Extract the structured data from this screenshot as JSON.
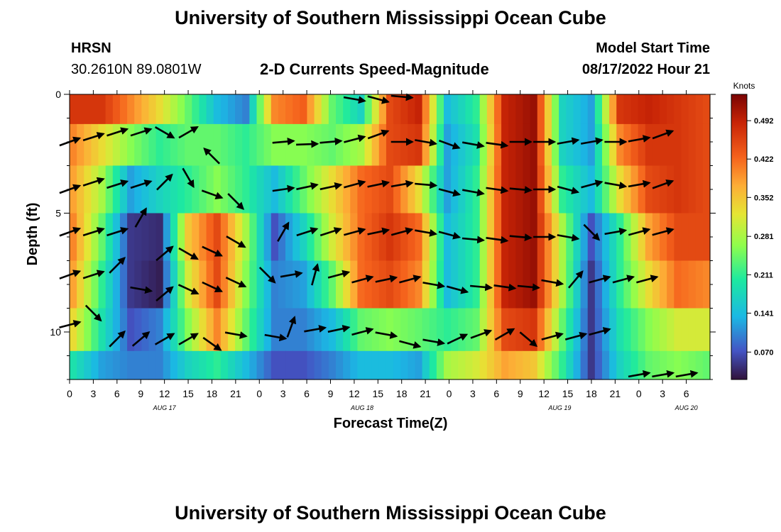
{
  "title": "University of Southern Mississippi Ocean Cube",
  "title_repeat": "University of Southern Mississippi Ocean Cube",
  "station": {
    "name": "HRSN",
    "coords": "30.2610N  89.0801W"
  },
  "model": {
    "label": "Model Start Time",
    "value": "08/17/2022 Hour 21"
  },
  "colors": {
    "background": "#ffffff",
    "arrow": "#000000"
  },
  "chart_data": {
    "type": "heatmap",
    "title": "2-D Currents Speed-Magnitude",
    "xlabel": "Forecast Time(Z)",
    "ylabel": "Depth (ft)",
    "y_range": [
      0,
      12
    ],
    "y_ticks": [
      0,
      5,
      10
    ],
    "x_hours_range": [
      0,
      81
    ],
    "x_tick_labels": [
      "0",
      "3",
      "6",
      "9",
      "12",
      "15",
      "18",
      "21",
      "0",
      "3",
      "6",
      "9",
      "12",
      "15",
      "18",
      "21",
      "0",
      "3",
      "6",
      "9",
      "12",
      "15",
      "18",
      "21",
      "0",
      "3",
      "6"
    ],
    "date_labels": [
      {
        "label": "AUG 17",
        "hour": 12
      },
      {
        "label": "AUG 18",
        "hour": 37
      },
      {
        "label": "AUG 19",
        "hour": 62
      },
      {
        "label": "AUG 20",
        "hour": 78
      }
    ],
    "colorbar": {
      "unit": "Knots",
      "range": [
        0.02,
        0.54
      ],
      "ticks": [
        "0.492",
        "0.422",
        "0.352",
        "0.281",
        "0.211",
        "0.141",
        "0.070"
      ]
    },
    "depth_rows": [
      0.5,
      2,
      4,
      6,
      8,
      10,
      11.6
    ],
    "speed_grid": [
      [
        0.47,
        0.47,
        0.4,
        0.33,
        0.24,
        0.14,
        0.1,
        0.4,
        0.43,
        0.24,
        0.17,
        0.45,
        0.49,
        0.14,
        0.21,
        0.49,
        0.52,
        0.17,
        0.12,
        0.47,
        0.49,
        0.47,
        0.45
      ],
      [
        0.4,
        0.33,
        0.26,
        0.21,
        0.24,
        0.24,
        0.21,
        0.26,
        0.26,
        0.24,
        0.28,
        0.45,
        0.47,
        0.12,
        0.19,
        0.49,
        0.52,
        0.17,
        0.12,
        0.4,
        0.47,
        0.47,
        0.45
      ],
      [
        0.38,
        0.28,
        0.12,
        0.17,
        0.21,
        0.26,
        0.21,
        0.14,
        0.24,
        0.33,
        0.42,
        0.45,
        0.33,
        0.12,
        0.21,
        0.49,
        0.52,
        0.21,
        0.14,
        0.33,
        0.45,
        0.47,
        0.45
      ],
      [
        0.4,
        0.24,
        0.05,
        0.04,
        0.35,
        0.45,
        0.28,
        0.07,
        0.17,
        0.31,
        0.42,
        0.47,
        0.42,
        0.14,
        0.21,
        0.49,
        0.52,
        0.28,
        0.07,
        0.21,
        0.38,
        0.45,
        0.45
      ],
      [
        0.38,
        0.21,
        0.05,
        0.03,
        0.31,
        0.45,
        0.26,
        0.1,
        0.12,
        0.24,
        0.42,
        0.45,
        0.4,
        0.14,
        0.21,
        0.49,
        0.52,
        0.28,
        0.05,
        0.21,
        0.33,
        0.42,
        0.4
      ],
      [
        0.33,
        0.19,
        0.07,
        0.1,
        0.26,
        0.4,
        0.24,
        0.1,
        0.1,
        0.14,
        0.24,
        0.26,
        0.24,
        0.21,
        0.24,
        0.45,
        0.47,
        0.24,
        0.05,
        0.19,
        0.26,
        0.31,
        0.31
      ],
      [
        0.19,
        0.12,
        0.1,
        0.1,
        0.17,
        0.21,
        0.14,
        0.07,
        0.07,
        0.1,
        0.14,
        0.14,
        0.12,
        0.28,
        0.31,
        0.38,
        0.35,
        0.21,
        0.05,
        0.17,
        0.24,
        0.26,
        0.24
      ]
    ],
    "vectors": [
      [
        0,
        2,
        20
      ],
      [
        3,
        1.8,
        18
      ],
      [
        6,
        1.6,
        18
      ],
      [
        9,
        1.6,
        18
      ],
      [
        12,
        1.6,
        -30
      ],
      [
        15,
        1.6,
        30
      ],
      [
        18,
        2.6,
        135
      ],
      [
        27,
        2.0,
        5
      ],
      [
        30,
        2.1,
        2
      ],
      [
        33,
        2.0,
        5
      ],
      [
        36,
        1.9,
        15
      ],
      [
        39,
        1.7,
        20
      ],
      [
        42,
        2.0,
        0
      ],
      [
        45,
        2.0,
        -10
      ],
      [
        48,
        2.1,
        -20
      ],
      [
        51,
        2.1,
        -10
      ],
      [
        54,
        2.1,
        -8
      ],
      [
        57,
        2.0,
        0
      ],
      [
        60,
        2.0,
        0
      ],
      [
        63,
        2.0,
        10
      ],
      [
        66,
        2.0,
        10
      ],
      [
        69,
        2.0,
        0
      ],
      [
        72,
        1.9,
        10
      ],
      [
        75,
        1.7,
        20
      ],
      [
        0,
        4,
        20
      ],
      [
        3,
        3.7,
        18
      ],
      [
        6,
        3.8,
        18
      ],
      [
        9,
        3.8,
        18
      ],
      [
        12,
        3.7,
        45
      ],
      [
        15,
        3.5,
        -60
      ],
      [
        18,
        4.2,
        -20
      ],
      [
        21,
        4.5,
        -45
      ],
      [
        27,
        4.0,
        8
      ],
      [
        30,
        3.9,
        12
      ],
      [
        33,
        3.9,
        12
      ],
      [
        36,
        3.8,
        15
      ],
      [
        39,
        3.8,
        12
      ],
      [
        42,
        3.8,
        10
      ],
      [
        45,
        3.8,
        -5
      ],
      [
        48,
        4.1,
        -15
      ],
      [
        51,
        4.1,
        -10
      ],
      [
        54,
        4.0,
        -8
      ],
      [
        57,
        4.0,
        -5
      ],
      [
        60,
        4.0,
        0
      ],
      [
        63,
        4.0,
        -15
      ],
      [
        66,
        3.8,
        15
      ],
      [
        69,
        3.8,
        -10
      ],
      [
        72,
        3.8,
        10
      ],
      [
        75,
        3.8,
        20
      ],
      [
        0,
        5.8,
        20
      ],
      [
        3,
        5.8,
        18
      ],
      [
        6,
        5.8,
        18
      ],
      [
        9,
        5.2,
        60
      ],
      [
        12,
        6.7,
        40
      ],
      [
        15,
        6.7,
        -30
      ],
      [
        18,
        6.6,
        -25
      ],
      [
        21,
        6.2,
        -30
      ],
      [
        27,
        5.8,
        60
      ],
      [
        30,
        5.8,
        18
      ],
      [
        33,
        5.8,
        18
      ],
      [
        36,
        5.8,
        15
      ],
      [
        39,
        5.8,
        12
      ],
      [
        42,
        5.8,
        15
      ],
      [
        45,
        5.8,
        -10
      ],
      [
        48,
        5.9,
        -15
      ],
      [
        51,
        6.1,
        -5
      ],
      [
        54,
        6.1,
        -8
      ],
      [
        57,
        6.0,
        -5
      ],
      [
        60,
        6.0,
        0
      ],
      [
        63,
        6.0,
        -10
      ],
      [
        66,
        5.8,
        -45
      ],
      [
        69,
        5.8,
        10
      ],
      [
        72,
        5.8,
        15
      ],
      [
        75,
        5.8,
        15
      ],
      [
        0,
        7.6,
        20
      ],
      [
        3,
        7.6,
        18
      ],
      [
        6,
        7.2,
        45
      ],
      [
        9,
        8.2,
        -10
      ],
      [
        12,
        8.4,
        40
      ],
      [
        15,
        8.2,
        -25
      ],
      [
        18,
        8.1,
        -25
      ],
      [
        21,
        7.9,
        -25
      ],
      [
        25,
        7.6,
        -45
      ],
      [
        28,
        7.6,
        10
      ],
      [
        31,
        7.6,
        75
      ],
      [
        34,
        7.6,
        15
      ],
      [
        37,
        7.8,
        15
      ],
      [
        40,
        7.8,
        12
      ],
      [
        43,
        7.8,
        15
      ],
      [
        46,
        8.0,
        -10
      ],
      [
        49,
        8.2,
        -15
      ],
      [
        52,
        8.1,
        -5
      ],
      [
        55,
        8.1,
        -8
      ],
      [
        58,
        8.1,
        -5
      ],
      [
        61,
        7.9,
        -10
      ],
      [
        64,
        7.8,
        50
      ],
      [
        67,
        7.8,
        15
      ],
      [
        70,
        7.8,
        15
      ],
      [
        73,
        7.8,
        15
      ],
      [
        0,
        9.7,
        15
      ],
      [
        3,
        9.2,
        -45
      ],
      [
        6,
        10.3,
        45
      ],
      [
        9,
        10.3,
        40
      ],
      [
        12,
        10.3,
        30
      ],
      [
        15,
        10.3,
        30
      ],
      [
        18,
        10.5,
        -35
      ],
      [
        21,
        10.1,
        -10
      ],
      [
        26,
        10.2,
        -10
      ],
      [
        28,
        9.8,
        70
      ],
      [
        31,
        9.9,
        10
      ],
      [
        34,
        9.9,
        12
      ],
      [
        37,
        10.0,
        15
      ],
      [
        40,
        10.1,
        -10
      ],
      [
        43,
        10.5,
        -15
      ],
      [
        46,
        10.4,
        -10
      ],
      [
        49,
        10.3,
        25
      ],
      [
        52,
        10.1,
        20
      ],
      [
        55,
        10.1,
        30
      ],
      [
        58,
        10.3,
        -40
      ],
      [
        61,
        10.2,
        15
      ],
      [
        64,
        10.2,
        15
      ],
      [
        67,
        10.0,
        15
      ],
      [
        72,
        11.8,
        10
      ],
      [
        75,
        11.8,
        10
      ],
      [
        78,
        11.8,
        10
      ],
      [
        36,
        0.2,
        -10
      ],
      [
        39,
        0.2,
        -15
      ],
      [
        42,
        0.1,
        -5
      ]
    ]
  }
}
